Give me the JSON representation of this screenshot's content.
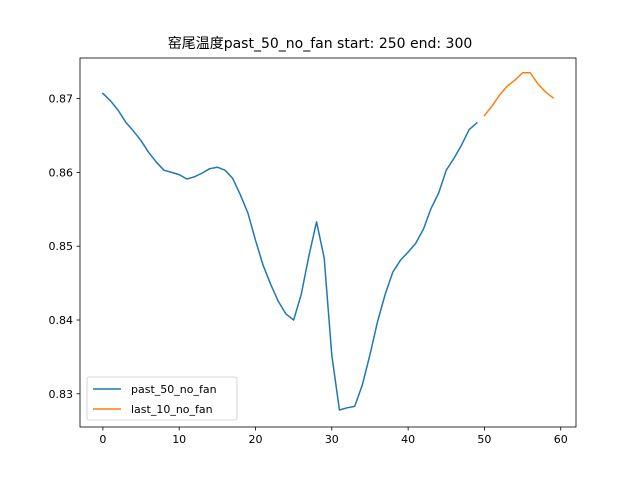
{
  "chart_data": {
    "type": "line",
    "title": "窑尾温度past_50_no_fan  start: 250 end: 300",
    "xlabel": "",
    "ylabel": "",
    "xlim": [
      -3,
      62
    ],
    "ylim": [
      0.8255,
      0.8755
    ],
    "xticks": [
      0,
      10,
      20,
      30,
      40,
      50,
      60
    ],
    "yticks": [
      0.83,
      0.84,
      0.85,
      0.86,
      0.87
    ],
    "xtick_labels": [
      "0",
      "10",
      "20",
      "30",
      "40",
      "50",
      "60"
    ],
    "ytick_labels": [
      "0.83",
      "0.84",
      "0.85",
      "0.86",
      "0.87"
    ],
    "grid": false,
    "legend_position": "lower-left",
    "series": [
      {
        "name": "past_50_no_fan",
        "color": "#1f77b4",
        "x": [
          0,
          1,
          2,
          3,
          4,
          5,
          6,
          7,
          8,
          9,
          10,
          11,
          12,
          13,
          14,
          15,
          16,
          17,
          18,
          19,
          20,
          21,
          22,
          23,
          24,
          25,
          26,
          27,
          28,
          29,
          30,
          31,
          32,
          33,
          34,
          35,
          36,
          37,
          38,
          39,
          40,
          41,
          42,
          43,
          44,
          45,
          46,
          47,
          48,
          49
        ],
        "y": [
          0.8707,
          0.8697,
          0.8684,
          0.8668,
          0.8656,
          0.8643,
          0.8627,
          0.8614,
          0.8603,
          0.86,
          0.8597,
          0.8591,
          0.8594,
          0.8599,
          0.8605,
          0.8607,
          0.8603,
          0.8592,
          0.857,
          0.8545,
          0.8508,
          0.8474,
          0.8448,
          0.8425,
          0.8408,
          0.84,
          0.8435,
          0.8487,
          0.8533,
          0.8484,
          0.8352,
          0.8278,
          0.8281,
          0.8283,
          0.8312,
          0.8353,
          0.8398,
          0.8435,
          0.8465,
          0.8481,
          0.8492,
          0.8504,
          0.8523,
          0.8551,
          0.8572,
          0.8603,
          0.8619,
          0.8637,
          0.8658,
          0.8667
        ]
      },
      {
        "name": "last_10_no_fan",
        "color": "#ff7f0e",
        "x": [
          50,
          51,
          52,
          53,
          54,
          55,
          56,
          57,
          58,
          59
        ],
        "y": [
          0.8677,
          0.869,
          0.8705,
          0.8717,
          0.8725,
          0.8735,
          0.8735,
          0.872,
          0.8709,
          0.8701
        ]
      }
    ]
  }
}
